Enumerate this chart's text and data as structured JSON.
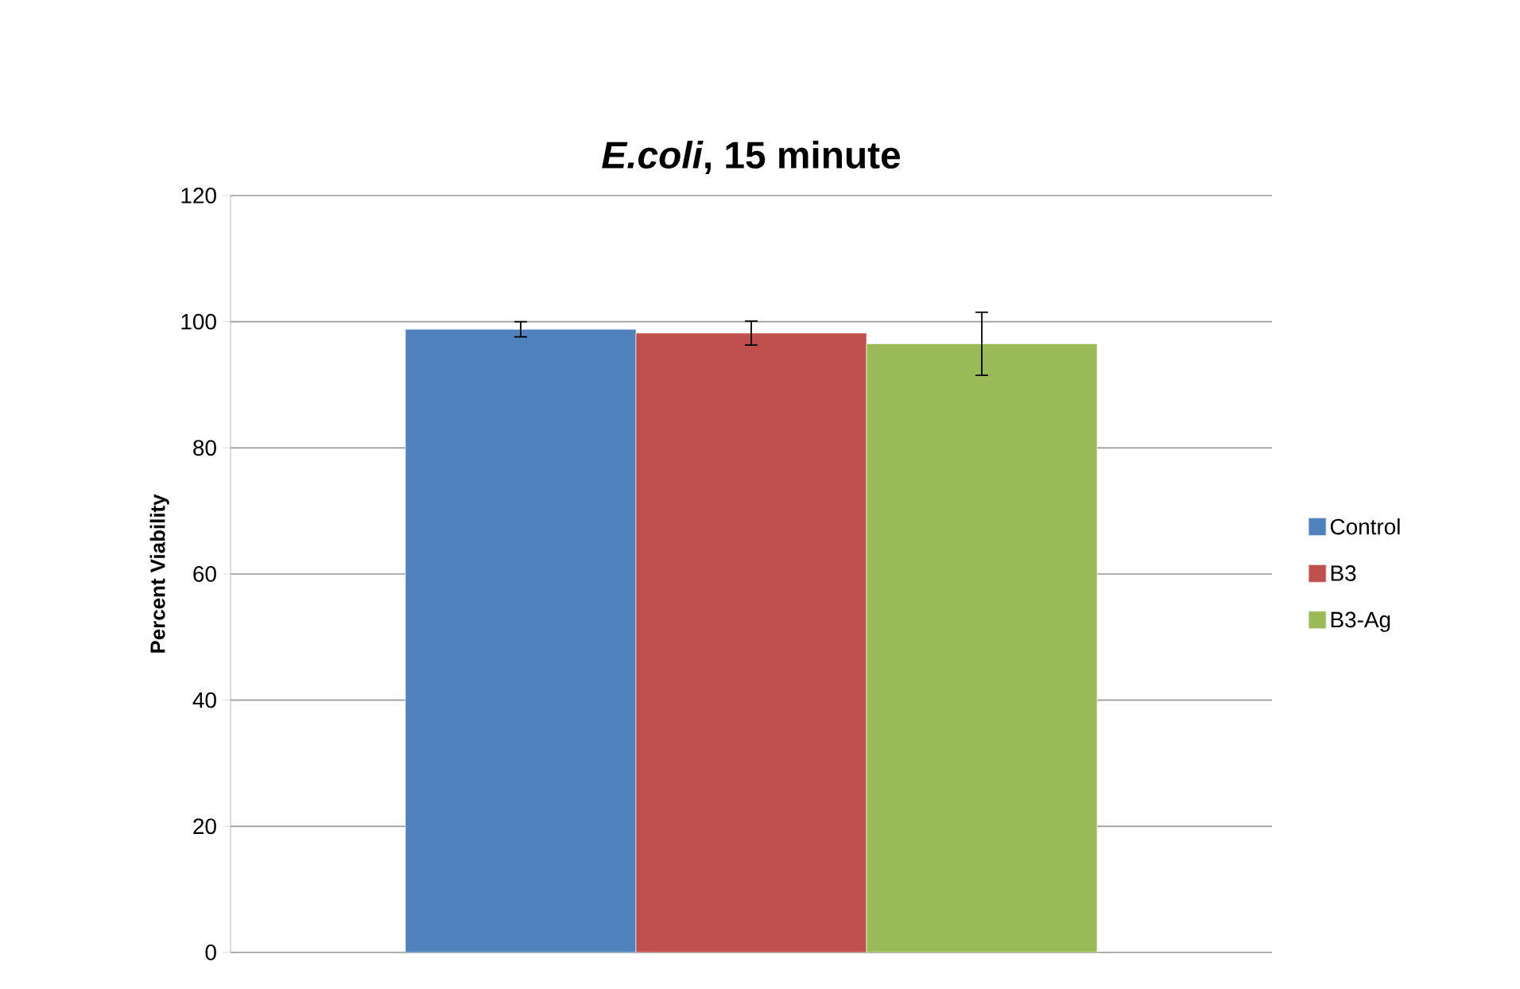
{
  "chart_data": {
    "type": "bar",
    "title": "*E.coli*, 15 minute",
    "ylabel": "Percent Viability",
    "categories": [
      null
    ],
    "series": [
      {
        "name": "Control",
        "color": "#4f81bd",
        "values": [
          98.8
        ],
        "errors": [
          1.2
        ]
      },
      {
        "name": "B3",
        "color": "#c0504d",
        "values": [
          98.2
        ],
        "errors": [
          1.9
        ]
      },
      {
        "name": "B3-Ag",
        "color": "#9bbb59",
        "values": [
          96.5
        ],
        "errors": [
          5
        ]
      }
    ],
    "ylim": [
      0,
      120
    ],
    "yticks": [
      0,
      20,
      40,
      60,
      80,
      100,
      120
    ],
    "grid": "y",
    "legend": "right"
  }
}
